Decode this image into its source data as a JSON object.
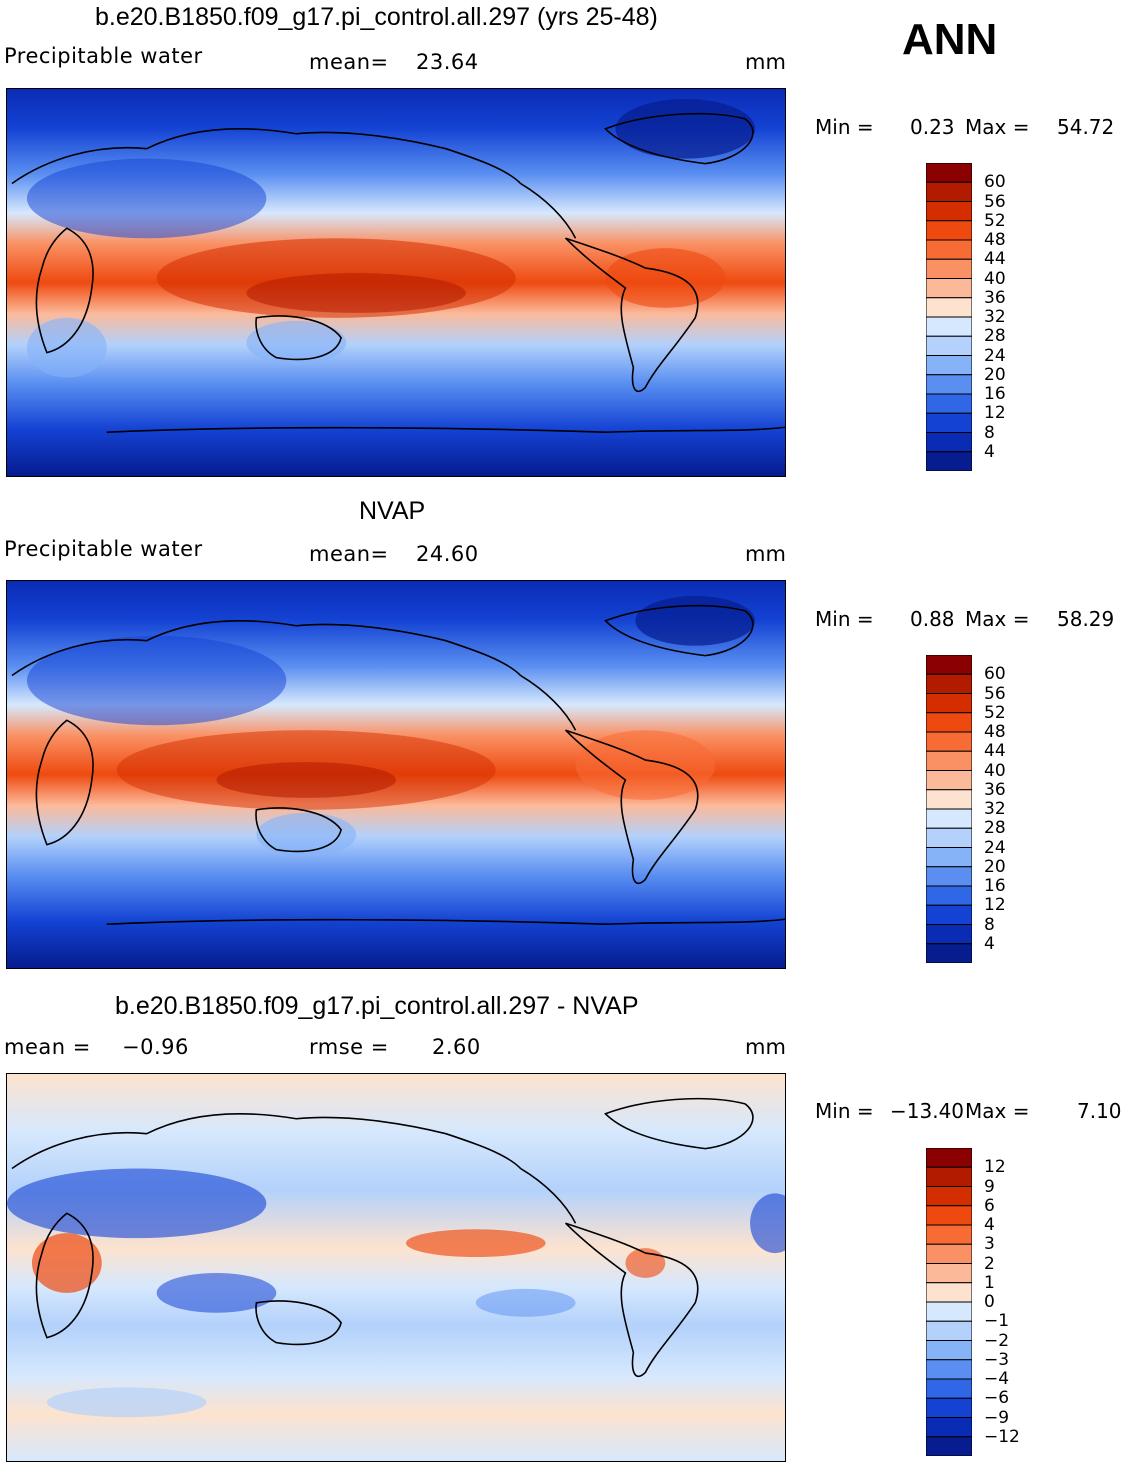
{
  "season": "ANN",
  "units": "mm",
  "panels": [
    {
      "title": "b.e20.B1850.f09_g17.pi_control.all.297 (yrs 25-48)",
      "left_label": "Precipitable  water",
      "stat_label": "mean=",
      "stat_value": "23.64",
      "min_label": "Min  =",
      "min_value": "0.23",
      "max_label": "Max  =",
      "max_value": "54.72",
      "levels": [
        "60",
        "56",
        "52",
        "48",
        "44",
        "40",
        "36",
        "32",
        "28",
        "24",
        "20",
        "16",
        "12",
        "8",
        "4"
      ],
      "colors": [
        "#8b0000",
        "#b31b00",
        "#d42e00",
        "#ee4a10",
        "#f76b35",
        "#fa9164",
        "#fcb99a",
        "#fde3cf",
        "#d6e8fd",
        "#b3d1fb",
        "#86b2f8",
        "#5a8ff1",
        "#2f67e6",
        "#1442d3",
        "#0a2cb5",
        "#061c8f"
      ]
    },
    {
      "title": "NVAP",
      "left_label": "Precipitable  water",
      "stat_label": "mean=",
      "stat_value": "24.60",
      "min_label": "Min  =",
      "min_value": "0.88",
      "max_label": "Max  =",
      "max_value": "58.29",
      "levels": [
        "60",
        "56",
        "52",
        "48",
        "44",
        "40",
        "36",
        "32",
        "28",
        "24",
        "20",
        "16",
        "12",
        "8",
        "4"
      ],
      "colors": [
        "#8b0000",
        "#b31b00",
        "#d42e00",
        "#ee4a10",
        "#f76b35",
        "#fa9164",
        "#fcb99a",
        "#fde3cf",
        "#d6e8fd",
        "#b3d1fb",
        "#86b2f8",
        "#5a8ff1",
        "#2f67e6",
        "#1442d3",
        "#0a2cb5",
        "#061c8f"
      ]
    },
    {
      "title": "b.e20.B1850.f09_g17.pi_control.all.297 - NVAP",
      "left_label": "mean  =",
      "left_value": "−0.96",
      "stat_label": "rmse  =",
      "stat_value": "2.60",
      "min_label": "Min  =",
      "min_value": "−13.40",
      "max_label": "Max  =",
      "max_value": "7.10",
      "levels": [
        "12",
        "9",
        "6",
        "4",
        "3",
        "2",
        "1",
        "0",
        "−1",
        "−2",
        "−3",
        "−4",
        "−6",
        "−9",
        "−12"
      ],
      "colors": [
        "#8b0000",
        "#b31b00",
        "#d42e00",
        "#ee4a10",
        "#f76b35",
        "#fa9164",
        "#fcb99a",
        "#fde3cf",
        "#d6e8fd",
        "#b3d1fb",
        "#86b2f8",
        "#5a8ff1",
        "#2f67e6",
        "#1442d3",
        "#0a2cb5",
        "#061c8f"
      ]
    }
  ]
}
